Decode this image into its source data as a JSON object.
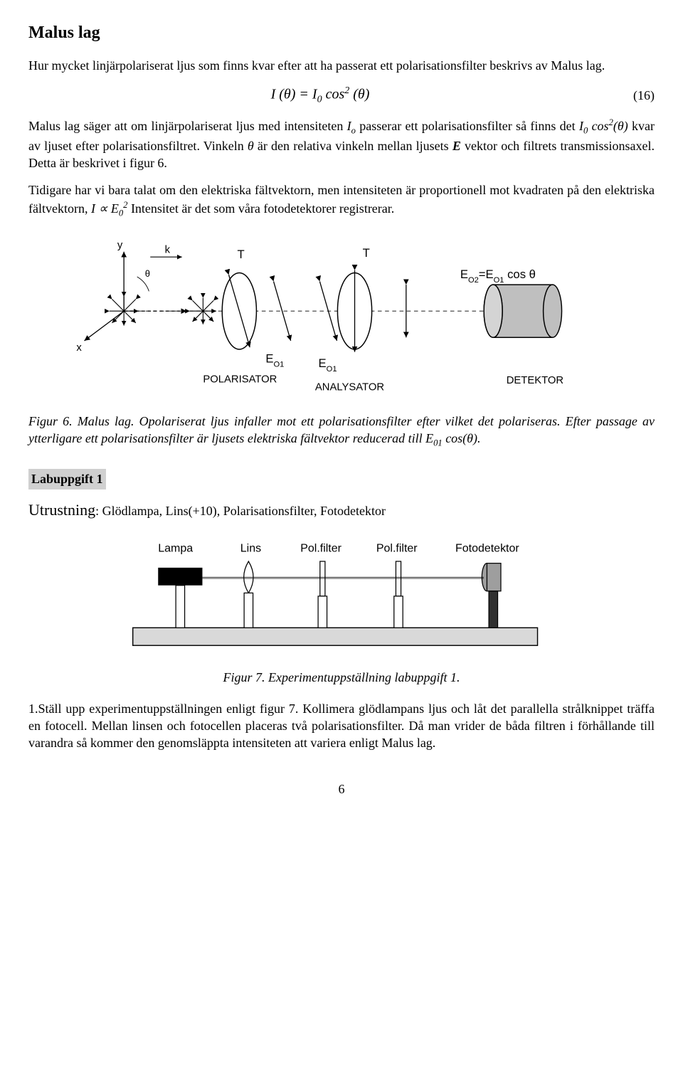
{
  "title": "Malus lag",
  "para1": "Hur mycket linjärpolariserat ljus som finns kvar efter att ha passerat ett polarisationsfilter beskrivs av Malus lag.",
  "eq16_html": "I (θ) = I<sub>0</sub> cos<sup>2</sup> (θ)",
  "eq16_num": "(16)",
  "para2_a": "Malus lag säger att om linjärpolariserat ljus med intensiteten ",
  "para2_Io": "I",
  "para2_Io_sub": "o",
  "para2_b": " passerar ett polarisationsfilter så finns det ",
  "para2_expr": "I<sub>0</sub> cos<sup>2</sup>(θ)",
  "para2_c": " kvar av ljuset efter polarisationsfiltret. Vinkeln ",
  "para2_theta": "θ",
  "para2_d": " är den relativa vinkeln mellan ljusets ",
  "para2_E": "E",
  "para2_e": " vektor och filtrets transmissionsaxel. Detta är beskrivet i figur 6.",
  "para3_a": "Tidigare har vi bara talat om den elektriska fältvektorn, men intensiteten är proportionell mot kvadraten på den elektriska fältvektorn, ",
  "para3_expr": "I ∝ E<sub>0</sub><sup>2</sup>",
  "para3_b": "  Intensitet är det som våra fotodetektorer registrerar.",
  "fig6": {
    "labels": {
      "y": "y",
      "x": "x",
      "k": "k",
      "theta": "θ",
      "T1": "T",
      "T2": "T",
      "E01a": "E",
      "E01a_sub": "O1",
      "E01b": "E",
      "E01b_sub": "O1",
      "right_eq": "E<tspan baseline-shift=\"sub\" font-size=\"12\">O2</tspan>=E<tspan baseline-shift=\"sub\" font-size=\"12\">O1</tspan> cos θ",
      "polarisator": "POLARISATOR",
      "analysator": "ANALYSATOR",
      "detektor": "DETEKTOR"
    },
    "colors": {
      "stroke": "#000000",
      "fill_detector": "#bfbfbf",
      "bg": "#ffffff"
    }
  },
  "caption6_a": "Figur 6.  Malus lag. Opolariserat ljus infaller mot ett polarisationsfilter efter vilket det polariseras. Efter passage av ytterligare ett polarisationsfilter är ljusets elektriska fältvektor reducerad till E",
  "caption6_sub": "01",
  "caption6_b": " cos(θ).",
  "lab_tag": "Labuppgift 1",
  "utr_word": "Utrustning",
  "utr_rest": ": Glödlampa, Lins(+10), Polarisationsfilter, Fotodetektor",
  "fig7": {
    "labels": {
      "lampa": "Lampa",
      "lins": "Lins",
      "polf1": "Pol.filter",
      "polf2": "Pol.filter",
      "foto": "Fotodetektor"
    },
    "colors": {
      "stroke": "#000000",
      "fill_bench": "#d9d9d9",
      "fill_lamp": "#000000",
      "fill_foto": "#9e9e9e",
      "bg": "#ffffff"
    }
  },
  "caption7": "Figur 7.  Experimentuppställning labuppgift 1.",
  "para4": " 1.Ställ upp experimentuppställningen enligt figur 7. Kollimera glödlampans ljus och låt det parallella strålknippet träffa en fotocell. Mellan linsen och fotocellen placeras två polarisationsfilter. Då man vrider de båda filtren i förhållande till varandra så kommer den genomsläppta intensiteten att variera enligt Malus lag.",
  "page_num": "6"
}
